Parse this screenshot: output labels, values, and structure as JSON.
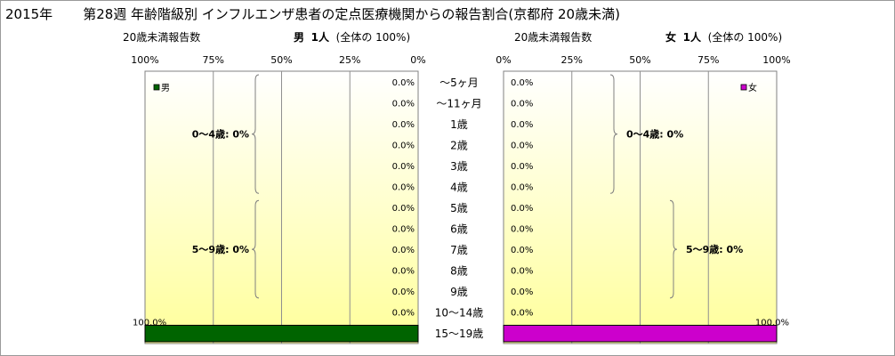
{
  "title": {
    "year": "2015年",
    "main": "第28週 年齢階級別 インフルエンザ患者の定点医療機関からの報告割合(京都府 20歳未満)"
  },
  "left_panel": {
    "subtitle": "20歳未満報告数",
    "header_sex": "男",
    "header_count": "1人",
    "header_note": "(全体の  100%)",
    "legend": "男",
    "color": "#006400",
    "groups": [
      {
        "label": "0～4歳: 0%",
        "from": 0,
        "to": 5
      },
      {
        "label": "5～9歳: 0%",
        "from": 6,
        "to": 10
      }
    ]
  },
  "right_panel": {
    "subtitle": "20歳未満報告数",
    "header_sex": "女",
    "header_count": "1人",
    "header_note": "(全体の  100%)",
    "legend": "女",
    "color": "#cc00cc",
    "groups": [
      {
        "label": "0～4歳: 0%",
        "from": 0,
        "to": 5
      },
      {
        "label": "5～9歳: 0%",
        "from": 6,
        "to": 10
      }
    ]
  },
  "chart_data": [
    {
      "type": "bar",
      "orientation": "horizontal",
      "direction": "right-to-left",
      "series": [
        {
          "name": "男",
          "values": [
            0,
            0,
            0,
            0,
            0,
            0,
            0,
            0,
            0,
            0,
            0,
            0,
            100
          ]
        }
      ],
      "categories": [
        "～5ヶ月",
        "～11ヶ月",
        "1歳",
        "2歳",
        "3歳",
        "4歳",
        "5歳",
        "6歳",
        "7歳",
        "8歳",
        "9歳",
        "10～14歳",
        "15～19歳"
      ],
      "value_labels": [
        "0.0%",
        "0.0%",
        "0.0%",
        "0.0%",
        "0.0%",
        "0.0%",
        "0.0%",
        "0.0%",
        "0.0%",
        "0.0%",
        "0.0%",
        "0.0%",
        "100.0%"
      ],
      "xticks": [
        "100%",
        "75%",
        "50%",
        "25%",
        "0%"
      ],
      "xlim": [
        0,
        100
      ]
    },
    {
      "type": "bar",
      "orientation": "horizontal",
      "direction": "left-to-right",
      "series": [
        {
          "name": "女",
          "values": [
            0,
            0,
            0,
            0,
            0,
            0,
            0,
            0,
            0,
            0,
            0,
            0,
            100
          ]
        }
      ],
      "categories": [
        "～5ヶ月",
        "～11ヶ月",
        "1歳",
        "2歳",
        "3歳",
        "4歳",
        "5歳",
        "6歳",
        "7歳",
        "8歳",
        "9歳",
        "10～14歳",
        "15～19歳"
      ],
      "value_labels": [
        "0.0%",
        "0.0%",
        "0.0%",
        "0.0%",
        "0.0%",
        "0.0%",
        "0.0%",
        "0.0%",
        "0.0%",
        "0.0%",
        "0.0%",
        "0.0%",
        "100.0%"
      ],
      "xticks": [
        "0%",
        "25%",
        "50%",
        "75%",
        "100%"
      ],
      "xlim": [
        0,
        100
      ]
    }
  ]
}
